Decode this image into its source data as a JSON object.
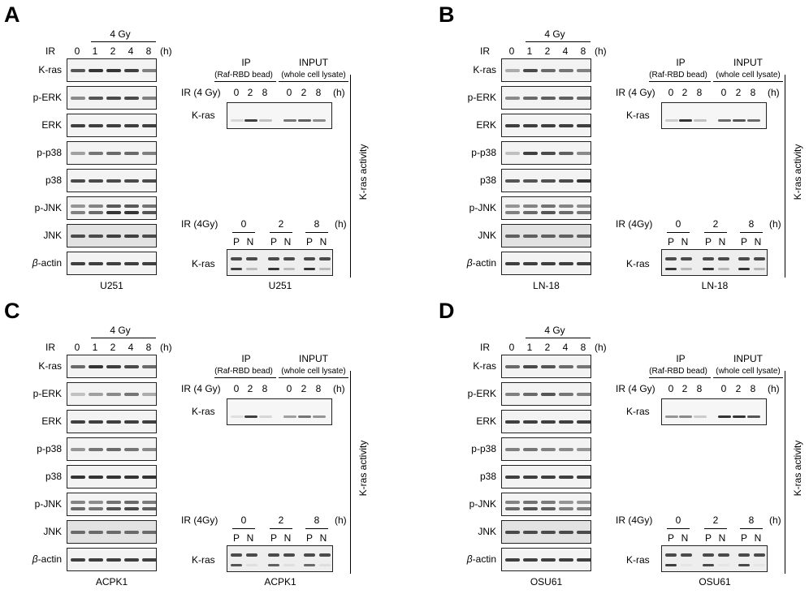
{
  "panels": [
    {
      "letter": "A",
      "cell_line": "U251",
      "blot_density": [
        [
          0.7,
          0.85,
          0.85,
          0.8,
          0.5
        ],
        [
          0.45,
          0.7,
          0.75,
          0.75,
          0.5
        ],
        [
          0.8,
          0.8,
          0.8,
          0.8,
          0.8
        ],
        [
          0.35,
          0.55,
          0.6,
          0.6,
          0.5
        ],
        [
          0.75,
          0.75,
          0.75,
          0.75,
          0.75
        ],
        [
          0.5,
          0.6,
          0.85,
          0.85,
          0.7
        ],
        [
          0.75,
          0.75,
          0.8,
          0.8,
          0.75
        ],
        [
          0.8,
          0.8,
          0.8,
          0.8,
          0.8
        ]
      ],
      "ip": [
        0.1,
        0.8,
        0.2
      ],
      "input": [
        0.55,
        0.65,
        0.45
      ],
      "pn": [
        [
          0.8,
          0.75
        ],
        [
          0.85,
          0.75
        ],
        [
          0.85,
          0.75
        ]
      ]
    },
    {
      "letter": "B",
      "cell_line": "LN-18",
      "blot_density": [
        [
          0.3,
          0.75,
          0.6,
          0.55,
          0.5
        ],
        [
          0.45,
          0.6,
          0.65,
          0.65,
          0.6
        ],
        [
          0.8,
          0.8,
          0.8,
          0.8,
          0.8
        ],
        [
          0.2,
          0.8,
          0.75,
          0.65,
          0.45
        ],
        [
          0.7,
          0.7,
          0.72,
          0.75,
          0.85
        ],
        [
          0.5,
          0.6,
          0.7,
          0.6,
          0.55
        ],
        [
          0.65,
          0.65,
          0.65,
          0.65,
          0.65
        ],
        [
          0.8,
          0.8,
          0.8,
          0.8,
          0.8
        ]
      ],
      "ip": [
        0.15,
        0.85,
        0.2
      ],
      "input": [
        0.6,
        0.7,
        0.6
      ],
      "pn": [
        [
          0.85,
          0.8
        ],
        [
          0.85,
          0.8
        ],
        [
          0.85,
          0.8
        ]
      ]
    },
    {
      "letter": "C",
      "cell_line": "ACPK1",
      "blot_density": [
        [
          0.6,
          0.85,
          0.8,
          0.75,
          0.6
        ],
        [
          0.2,
          0.35,
          0.45,
          0.55,
          0.3
        ],
        [
          0.8,
          0.8,
          0.8,
          0.8,
          0.8
        ],
        [
          0.4,
          0.55,
          0.6,
          0.55,
          0.45
        ],
        [
          0.85,
          0.85,
          0.85,
          0.85,
          0.85
        ],
        [
          0.6,
          0.55,
          0.7,
          0.75,
          0.65
        ],
        [
          0.6,
          0.6,
          0.6,
          0.6,
          0.6
        ],
        [
          0.8,
          0.8,
          0.8,
          0.8,
          0.8
        ]
      ],
      "ip": [
        0.05,
        0.8,
        0.1
      ],
      "input": [
        0.35,
        0.55,
        0.4
      ],
      "pn": [
        [
          0.7,
          0.2
        ],
        [
          0.65,
          0.2
        ],
        [
          0.6,
          0.2
        ]
      ]
    },
    {
      "letter": "D",
      "cell_line": "OSU61",
      "blot_density": [
        [
          0.6,
          0.75,
          0.7,
          0.6,
          0.55
        ],
        [
          0.5,
          0.6,
          0.7,
          0.55,
          0.5
        ],
        [
          0.8,
          0.8,
          0.8,
          0.8,
          0.8
        ],
        [
          0.5,
          0.55,
          0.5,
          0.45,
          0.4
        ],
        [
          0.8,
          0.8,
          0.8,
          0.8,
          0.8
        ],
        [
          0.6,
          0.7,
          0.65,
          0.5,
          0.5
        ],
        [
          0.75,
          0.75,
          0.75,
          0.75,
          0.75
        ],
        [
          0.8,
          0.8,
          0.8,
          0.8,
          0.8
        ]
      ],
      "ip": [
        0.4,
        0.45,
        0.15
      ],
      "input": [
        0.85,
        0.85,
        0.7
      ],
      "pn": [
        [
          0.8,
          0.1
        ],
        [
          0.75,
          0.1
        ],
        [
          0.75,
          0.1
        ]
      ]
    }
  ],
  "labels": {
    "ir": "IR",
    "dose": "4 Gy",
    "hour": "(h)",
    "timepoints": [
      "0",
      "1",
      "2",
      "4",
      "8"
    ],
    "rows": [
      "K-ras",
      "p-ERK",
      "ERK",
      "p-p38",
      "p38",
      "p-JNK",
      "JNK"
    ],
    "beta": "β",
    "actin": "-actin",
    "ip": "IP",
    "ip_sub": "(Raf-RBD bead)",
    "input": "INPUT",
    "input_sub": "(whole cell lysate)",
    "ir_dose_long": "IR (4 Gy)",
    "ir_dose_short": "IR (4Gy)",
    "ip_times": [
      "0",
      "2",
      "8"
    ],
    "p": "P",
    "n": "N",
    "kras": "K-ras",
    "activity": "K-ras activity"
  }
}
